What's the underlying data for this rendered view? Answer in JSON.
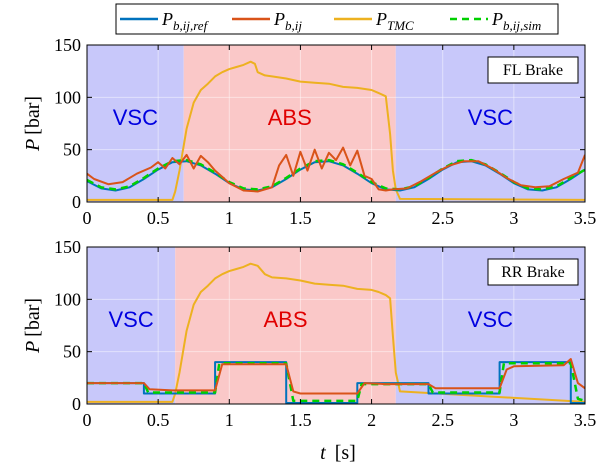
{
  "legend": [
    {
      "id": "ref",
      "html_main": "P",
      "html_sub": "b,ij,ref",
      "color": "#0072BD",
      "dash": ""
    },
    {
      "id": "meas",
      "html_main": "P",
      "html_sub": "b,ij",
      "color": "#D95319",
      "dash": ""
    },
    {
      "id": "tmc",
      "html_main": "P",
      "html_sub": "TMC",
      "color": "#EDB120",
      "dash": ""
    },
    {
      "id": "sim",
      "html_main": "P",
      "html_sub": "b,ij,sim",
      "color": "#00D000",
      "dash": "7,5"
    }
  ],
  "xlabel": {
    "main": "t",
    "unit": "[s]"
  },
  "ylabel": {
    "main": "P",
    "unit": "[bar]"
  },
  "colors": {
    "vsc_bg": "#C8C8FA",
    "abs_bg": "#FAC8C8",
    "vsc_text": "#0000E0",
    "abs_text": "#E00000"
  },
  "chart_data": [
    {
      "type": "line",
      "id": "fl",
      "box_label": "FL Brake",
      "xlim": [
        0,
        3.5
      ],
      "ylim": [
        0,
        150
      ],
      "xticks": [
        0,
        0.5,
        1,
        1.5,
        2,
        2.5,
        3,
        3.5
      ],
      "xtick_labels": [
        "0",
        "0.5",
        "1",
        "1.5",
        "2",
        "2.5",
        "3",
        "3.5"
      ],
      "yticks": [
        0,
        50,
        100,
        150
      ],
      "ytick_labels": [
        "0",
        "50",
        "100",
        "150"
      ],
      "regions": [
        {
          "label": "VSC",
          "x0": 0,
          "x1": 0.68,
          "kind": "vsc"
        },
        {
          "label": "ABS",
          "x0": 0.68,
          "x1": 2.17,
          "kind": "abs"
        },
        {
          "label": "VSC",
          "x0": 2.17,
          "x1": 3.5,
          "kind": "vsc"
        }
      ],
      "series": [
        {
          "ref": "tmc",
          "x": [
            0,
            0.6,
            0.62,
            0.65,
            0.7,
            0.75,
            0.8,
            0.85,
            0.9,
            0.95,
            1.0,
            1.05,
            1.1,
            1.15,
            1.18,
            1.2,
            1.25,
            1.3,
            1.4,
            1.5,
            1.6,
            1.7,
            1.8,
            1.9,
            2.0,
            2.05,
            2.1,
            2.13,
            2.15,
            2.17,
            2.2,
            3.5
          ],
          "y": [
            2,
            2,
            10,
            30,
            70,
            95,
            107,
            113,
            120,
            124,
            127,
            129,
            131,
            134,
            132,
            124,
            121,
            120,
            118,
            115,
            114,
            113,
            110,
            109,
            107,
            104,
            101,
            65,
            30,
            12,
            3,
            2
          ]
        },
        {
          "ref": "ref",
          "x": [
            0,
            0.1,
            0.2,
            0.3,
            0.4,
            0.5,
            0.6,
            0.7,
            0.8,
            0.9,
            1.0,
            1.1,
            1.2,
            1.3,
            1.4,
            1.5,
            1.6,
            1.7,
            1.8,
            1.9,
            2.0,
            2.1,
            2.2,
            2.3,
            2.4,
            2.5,
            2.6,
            2.7,
            2.8,
            2.9,
            3.0,
            3.1,
            3.2,
            3.3,
            3.4,
            3.5
          ],
          "y": [
            20,
            13,
            11,
            14,
            22,
            31,
            38,
            39,
            35,
            27,
            18,
            12,
            11,
            14,
            22,
            31,
            38,
            39,
            35,
            27,
            18,
            12,
            11,
            14,
            22,
            31,
            38,
            39,
            35,
            27,
            18,
            12,
            11,
            14,
            22,
            31
          ]
        },
        {
          "ref": "sim",
          "x": [
            0,
            0.1,
            0.2,
            0.3,
            0.4,
            0.5,
            0.6,
            0.7,
            0.8,
            0.9,
            1.0,
            1.1,
            1.2,
            1.3,
            1.4,
            1.5,
            1.6,
            1.7,
            1.8,
            1.9,
            2.0,
            2.1,
            2.2,
            2.3,
            2.4,
            2.5,
            2.6,
            2.7,
            2.8,
            2.9,
            3.0,
            3.1,
            3.2,
            3.3,
            3.4,
            3.5
          ],
          "y": [
            21,
            14,
            12,
            15,
            23,
            32,
            39,
            40,
            36,
            28,
            19,
            13,
            12,
            15,
            23,
            32,
            39,
            40,
            36,
            28,
            19,
            13,
            12,
            15,
            23,
            32,
            39,
            40,
            36,
            28,
            19,
            13,
            12,
            15,
            23,
            31
          ]
        },
        {
          "ref": "meas",
          "x": [
            0,
            0.05,
            0.15,
            0.25,
            0.35,
            0.45,
            0.5,
            0.55,
            0.6,
            0.65,
            0.7,
            0.75,
            0.8,
            0.85,
            0.9,
            0.95,
            1.0,
            1.1,
            1.2,
            1.3,
            1.35,
            1.4,
            1.45,
            1.5,
            1.55,
            1.6,
            1.65,
            1.7,
            1.75,
            1.8,
            1.85,
            1.9,
            1.95,
            2.0,
            2.05,
            2.1,
            2.15,
            2.25,
            2.35,
            2.45,
            2.55,
            2.65,
            2.75,
            2.85,
            2.95,
            3.05,
            3.15,
            3.25,
            3.35,
            3.45,
            3.5
          ],
          "y": [
            27,
            22,
            17,
            19,
            27,
            33,
            38,
            32,
            42,
            36,
            45,
            32,
            44,
            38,
            30,
            24,
            18,
            11,
            10,
            14,
            35,
            45,
            25,
            48,
            30,
            50,
            32,
            47,
            40,
            52,
            35,
            49,
            25,
            22,
            12,
            11,
            12,
            13,
            20,
            28,
            35,
            39,
            39,
            32,
            23,
            16,
            14,
            15,
            22,
            28,
            45
          ]
        }
      ]
    },
    {
      "type": "line",
      "id": "rr",
      "box_label": "RR Brake",
      "xlim": [
        0,
        3.5
      ],
      "ylim": [
        0,
        150
      ],
      "xticks": [
        0,
        0.5,
        1,
        1.5,
        2,
        2.5,
        3,
        3.5
      ],
      "xtick_labels": [
        "0",
        "0.5",
        "1",
        "1.5",
        "2",
        "2.5",
        "3",
        "3.5"
      ],
      "yticks": [
        0,
        50,
        100,
        150
      ],
      "ytick_labels": [
        "0",
        "50",
        "100",
        "150"
      ],
      "regions": [
        {
          "label": "VSC",
          "x0": 0,
          "x1": 0.62,
          "kind": "vsc"
        },
        {
          "label": "ABS",
          "x0": 0.62,
          "x1": 2.17,
          "kind": "abs"
        },
        {
          "label": "VSC",
          "x0": 2.17,
          "x1": 3.5,
          "kind": "vsc"
        }
      ],
      "series": [
        {
          "ref": "tmc",
          "x": [
            0,
            0.6,
            0.62,
            0.65,
            0.7,
            0.75,
            0.8,
            0.85,
            0.9,
            0.95,
            1.0,
            1.05,
            1.1,
            1.15,
            1.2,
            1.25,
            1.3,
            1.4,
            1.5,
            1.6,
            1.7,
            1.8,
            1.9,
            2.0,
            2.05,
            2.1,
            2.13,
            2.15,
            2.17,
            2.2,
            3.5
          ],
          "y": [
            2,
            2,
            10,
            30,
            70,
            95,
            107,
            113,
            120,
            124,
            127,
            129,
            131,
            134,
            132,
            124,
            121,
            120,
            118,
            115,
            114,
            113,
            110,
            109,
            107,
            104,
            101,
            65,
            30,
            12,
            2
          ]
        },
        {
          "ref": "ref",
          "x": [
            0,
            0.4,
            0.4,
            0.9,
            0.9,
            1.4,
            1.4,
            1.9,
            1.9,
            2.4,
            2.4,
            2.9,
            2.9,
            3.4,
            3.4,
            3.5
          ],
          "y": [
            20,
            20,
            10,
            10,
            40,
            40,
            1,
            1,
            20,
            20,
            10,
            10,
            40,
            40,
            1,
            1
          ]
        },
        {
          "ref": "sim",
          "x": [
            0,
            0.4,
            0.43,
            0.9,
            0.93,
            1.4,
            1.45,
            1.9,
            1.93,
            2.4,
            2.43,
            2.9,
            2.93,
            3.4,
            3.45,
            3.5
          ],
          "y": [
            20,
            20,
            11,
            11,
            39,
            39,
            3,
            3,
            19,
            19,
            11,
            11,
            39,
            39,
            5,
            3
          ]
        },
        {
          "ref": "meas",
          "x": [
            0,
            0.4,
            0.44,
            0.6,
            0.9,
            0.95,
            1.4,
            1.45,
            1.5,
            1.9,
            1.95,
            2.1,
            2.4,
            2.45,
            2.9,
            2.95,
            3.0,
            3.35,
            3.4,
            3.45,
            3.5
          ],
          "y": [
            20,
            20,
            14,
            13,
            13,
            38,
            38,
            12,
            10,
            10,
            20,
            19,
            19,
            15,
            15,
            33,
            36,
            37,
            43,
            20,
            15
          ]
        }
      ]
    }
  ]
}
